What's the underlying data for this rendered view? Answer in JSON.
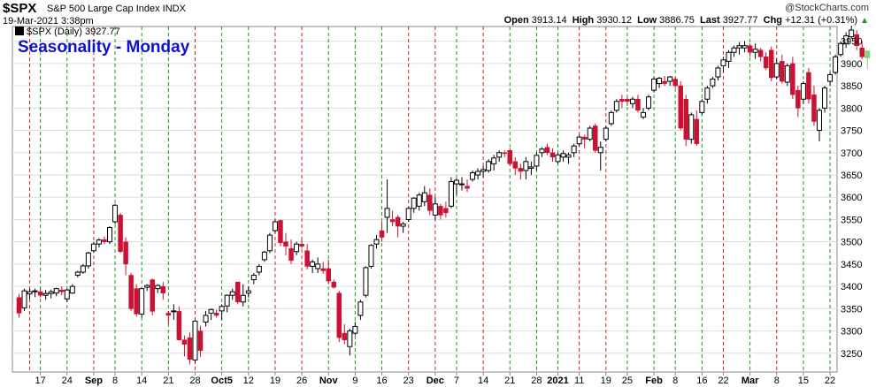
{
  "header": {
    "symbol": "$SPX",
    "description": "S&P 500 Large Cap Index  INDX",
    "datetime": "19-Mar-2021 3:38pm",
    "brand": "@StockCharts.com",
    "open_label": "Open",
    "open": "3913.14",
    "high_label": "High",
    "high": "3930.12",
    "low_label": "Low",
    "low": "3886.75",
    "last_label": "Last",
    "last": "3927.77",
    "chg_label": "Chg",
    "chg": "+12.31 (+0.31%)"
  },
  "chart_data": {
    "type": "candlestick",
    "title": "Seasonality - Monday",
    "legend": "$SPX (Daily) 3927.77",
    "yticks": [
      3250,
      3300,
      3350,
      3400,
      3450,
      3500,
      3550,
      3600,
      3650,
      3700,
      3750,
      3800,
      3850,
      3900,
      3950
    ],
    "ylim": [
      3208,
      3983
    ],
    "xlim": [
      0,
      154
    ],
    "xticks": [
      {
        "label": "17",
        "bold": false,
        "i": 4
      },
      {
        "label": "24",
        "bold": false,
        "i": 9
      },
      {
        "label": "Sep",
        "bold": true,
        "i": 14
      },
      {
        "label": "8",
        "bold": false,
        "i": 18
      },
      {
        "label": "14",
        "bold": false,
        "i": 23
      },
      {
        "label": "21",
        "bold": false,
        "i": 28
      },
      {
        "label": "28",
        "bold": false,
        "i": 33
      },
      {
        "label": "Oct5",
        "bold": true,
        "i": 38
      },
      {
        "label": "12",
        "bold": false,
        "i": 43
      },
      {
        "label": "19",
        "bold": false,
        "i": 48
      },
      {
        "label": "26",
        "bold": false,
        "i": 53
      },
      {
        "label": "Nov",
        "bold": true,
        "i": 58
      },
      {
        "label": "9",
        "bold": false,
        "i": 63
      },
      {
        "label": "16",
        "bold": false,
        "i": 68
      },
      {
        "label": "23",
        "bold": false,
        "i": 73
      },
      {
        "label": "Dec",
        "bold": true,
        "i": 78
      },
      {
        "label": "7",
        "bold": false,
        "i": 82
      },
      {
        "label": "14",
        "bold": false,
        "i": 87
      },
      {
        "label": "21",
        "bold": false,
        "i": 92
      },
      {
        "label": "28",
        "bold": false,
        "i": 97
      },
      {
        "label": "2021",
        "bold": true,
        "i": 101
      },
      {
        "label": "11",
        "bold": false,
        "i": 105
      },
      {
        "label": "19",
        "bold": false,
        "i": 110
      },
      {
        "label": "25",
        "bold": false,
        "i": 114
      },
      {
        "label": "Feb",
        "bold": true,
        "i": 119
      },
      {
        "label": "8",
        "bold": false,
        "i": 123
      },
      {
        "label": "16",
        "bold": false,
        "i": 128
      },
      {
        "label": "22",
        "bold": false,
        "i": 132
      },
      {
        "label": "Mar",
        "bold": true,
        "i": 137
      },
      {
        "label": "8",
        "bold": false,
        "i": 142
      },
      {
        "label": "15",
        "bold": false,
        "i": 147
      },
      {
        "label": "22",
        "bold": false,
        "i": 152
      }
    ],
    "vlines": [
      {
        "i": 2,
        "c": "r"
      },
      {
        "i": 4,
        "c": "g"
      },
      {
        "i": 9,
        "c": "g"
      },
      {
        "i": 14,
        "c": "r"
      },
      {
        "i": 18,
        "c": "g"
      },
      {
        "i": 23,
        "c": "g"
      },
      {
        "i": 28,
        "c": "g"
      },
      {
        "i": 33,
        "c": "r"
      },
      {
        "i": 38,
        "c": "g"
      },
      {
        "i": 43,
        "c": "g"
      },
      {
        "i": 48,
        "c": "r"
      },
      {
        "i": 53,
        "c": "r"
      },
      {
        "i": 58,
        "c": "g"
      },
      {
        "i": 63,
        "c": "g"
      },
      {
        "i": 68,
        "c": "g"
      },
      {
        "i": 73,
        "c": "r"
      },
      {
        "i": 78,
        "c": "r"
      },
      {
        "i": 82,
        "c": "g"
      },
      {
        "i": 87,
        "c": "r"
      },
      {
        "i": 92,
        "c": "g"
      },
      {
        "i": 97,
        "c": "g"
      },
      {
        "i": 101,
        "c": "g"
      },
      {
        "i": 105,
        "c": "r"
      },
      {
        "i": 110,
        "c": "r"
      },
      {
        "i": 114,
        "c": "g"
      },
      {
        "i": 119,
        "c": "g"
      },
      {
        "i": 123,
        "c": "g"
      },
      {
        "i": 128,
        "c": "g"
      },
      {
        "i": 132,
        "c": "r"
      },
      {
        "i": 137,
        "c": "g"
      },
      {
        "i": 142,
        "c": "r"
      },
      {
        "i": 147,
        "c": "g"
      },
      {
        "i": 152,
        "c": "g"
      }
    ],
    "candles": [
      [
        3375,
        3383,
        3330,
        3340
      ],
      [
        3352,
        3395,
        3345,
        3390
      ],
      [
        3383,
        3395,
        3372,
        3388
      ],
      [
        3388,
        3395,
        3376,
        3390
      ],
      [
        3388,
        3396,
        3375,
        3380
      ],
      [
        3380,
        3392,
        3370,
        3384
      ],
      [
        3384,
        3393,
        3373,
        3388
      ],
      [
        3385,
        3397,
        3378,
        3395
      ],
      [
        3392,
        3400,
        3380,
        3388
      ],
      [
        3372,
        3395,
        3365,
        3392
      ],
      [
        3385,
        3405,
        3383,
        3400
      ],
      [
        3425,
        3435,
        3420,
        3432
      ],
      [
        3432,
        3450,
        3428,
        3446
      ],
      [
        3446,
        3478,
        3440,
        3475
      ],
      [
        3480,
        3500,
        3475,
        3495
      ],
      [
        3495,
        3508,
        3487,
        3504
      ],
      [
        3505,
        3512,
        3495,
        3500
      ],
      [
        3500,
        3535,
        3495,
        3532
      ],
      [
        3545,
        3585,
        3540,
        3582
      ],
      [
        3560,
        3565,
        3475,
        3478
      ],
      [
        3500,
        3510,
        3425,
        3450
      ],
      [
        3425,
        3430,
        3345,
        3350
      ],
      [
        3395,
        3405,
        3332,
        3338
      ],
      [
        3338,
        3396,
        3330,
        3395
      ],
      [
        3398,
        3405,
        3390,
        3402
      ],
      [
        3415,
        3418,
        3335,
        3344
      ],
      [
        3395,
        3405,
        3385,
        3402
      ],
      [
        3400,
        3410,
        3370,
        3385
      ],
      [
        3340,
        3345,
        3315,
        3335
      ],
      [
        3345,
        3360,
        3325,
        3345
      ],
      [
        3344,
        3355,
        3278,
        3280
      ],
      [
        3280,
        3290,
        3243,
        3270
      ],
      [
        3285,
        3297,
        3225,
        3236
      ],
      [
        3235,
        3325,
        3229,
        3322
      ],
      [
        3300,
        3312,
        3242,
        3256
      ],
      [
        3320,
        3345,
        3310,
        3335
      ],
      [
        3340,
        3350,
        3325,
        3348
      ],
      [
        3340,
        3348,
        3330,
        3335
      ],
      [
        3345,
        3360,
        3325,
        3355
      ],
      [
        3356,
        3382,
        3342,
        3380
      ],
      [
        3380,
        3395,
        3370,
        3388
      ],
      [
        3410,
        3410,
        3360,
        3365
      ],
      [
        3365,
        3405,
        3355,
        3380
      ],
      [
        3385,
        3400,
        3375,
        3390
      ],
      [
        3415,
        3430,
        3405,
        3425
      ],
      [
        3432,
        3450,
        3425,
        3445
      ],
      [
        3460,
        3480,
        3455,
        3477
      ],
      [
        3480,
        3520,
        3475,
        3515
      ],
      [
        3525,
        3550,
        3520,
        3545
      ],
      [
        3548,
        3550,
        3490,
        3498
      ],
      [
        3500,
        3520,
        3470,
        3490
      ],
      [
        3485,
        3505,
        3450,
        3458
      ],
      [
        3478,
        3500,
        3470,
        3495
      ],
      [
        3495,
        3505,
        3485,
        3490
      ],
      [
        3480,
        3495,
        3438,
        3445
      ],
      [
        3445,
        3460,
        3430,
        3455
      ],
      [
        3440,
        3465,
        3430,
        3450
      ],
      [
        3440,
        3455,
        3428,
        3435
      ],
      [
        3440,
        3460,
        3405,
        3412
      ],
      [
        3410,
        3415,
        3395,
        3398
      ],
      [
        3385,
        3390,
        3275,
        3285
      ],
      [
        3295,
        3315,
        3270,
        3280
      ],
      [
        3265,
        3305,
        3245,
        3300
      ],
      [
        3295,
        3320,
        3290,
        3310
      ],
      [
        3335,
        3370,
        3325,
        3365
      ],
      [
        3380,
        3445,
        3375,
        3442
      ],
      [
        3445,
        3495,
        3440,
        3492
      ],
      [
        3495,
        3515,
        3485,
        3505
      ],
      [
        3525,
        3545,
        3500,
        3510
      ],
      [
        3555,
        3640,
        3520,
        3575
      ],
      [
        3550,
        3570,
        3535,
        3545
      ],
      [
        3555,
        3560,
        3510,
        3535
      ],
      [
        3535,
        3545,
        3520,
        3540
      ],
      [
        3550,
        3578,
        3545,
        3575
      ],
      [
        3575,
        3600,
        3565,
        3598
      ],
      [
        3580,
        3610,
        3570,
        3605
      ],
      [
        3590,
        3625,
        3580,
        3610
      ],
      [
        3605,
        3620,
        3560,
        3570
      ],
      [
        3560,
        3600,
        3550,
        3585
      ],
      [
        3580,
        3585,
        3550,
        3560
      ],
      [
        3575,
        3590,
        3555,
        3565
      ],
      [
        3580,
        3645,
        3575,
        3635
      ],
      [
        3630,
        3642,
        3605,
        3638
      ],
      [
        3630,
        3645,
        3615,
        3630
      ],
      [
        3625,
        3640,
        3612,
        3620
      ],
      [
        3640,
        3660,
        3635,
        3655
      ],
      [
        3650,
        3665,
        3640,
        3658
      ],
      [
        3658,
        3670,
        3645,
        3662
      ],
      [
        3660,
        3685,
        3655,
        3680
      ],
      [
        3675,
        3695,
        3660,
        3688
      ],
      [
        3690,
        3705,
        3680,
        3700
      ],
      [
        3700,
        3705,
        3690,
        3698
      ],
      [
        3705,
        3710,
        3670,
        3675
      ],
      [
        3680,
        3690,
        3650,
        3665
      ],
      [
        3665,
        3675,
        3640,
        3658
      ],
      [
        3660,
        3690,
        3640,
        3680
      ],
      [
        3665,
        3680,
        3650,
        3668
      ],
      [
        3670,
        3700,
        3660,
        3694
      ],
      [
        3700,
        3712,
        3690,
        3708
      ],
      [
        3712,
        3720,
        3695,
        3700
      ],
      [
        3700,
        3710,
        3680,
        3690
      ],
      [
        3680,
        3700,
        3675,
        3695
      ],
      [
        3690,
        3705,
        3680,
        3698
      ],
      [
        3690,
        3700,
        3675,
        3695
      ],
      [
        3700,
        3720,
        3690,
        3715
      ],
      [
        3720,
        3740,
        3715,
        3735
      ],
      [
        3735,
        3740,
        3710,
        3730
      ],
      [
        3730,
        3760,
        3725,
        3755
      ],
      [
        3760,
        3765,
        3700,
        3705
      ],
      [
        3700,
        3725,
        3660,
        3712
      ],
      [
        3730,
        3760,
        3725,
        3755
      ],
      [
        3765,
        3795,
        3760,
        3790
      ],
      [
        3795,
        3820,
        3790,
        3815
      ],
      [
        3820,
        3830,
        3800,
        3815
      ],
      [
        3820,
        3825,
        3805,
        3815
      ],
      [
        3810,
        3825,
        3800,
        3820
      ],
      [
        3820,
        3830,
        3790,
        3795
      ],
      [
        3780,
        3800,
        3775,
        3790
      ],
      [
        3800,
        3830,
        3795,
        3825
      ],
      [
        3840,
        3870,
        3835,
        3865
      ],
      [
        3855,
        3870,
        3845,
        3867
      ],
      [
        3860,
        3872,
        3850,
        3855
      ],
      [
        3860,
        3872,
        3850,
        3870
      ],
      [
        3865,
        3870,
        3845,
        3850
      ],
      [
        3850,
        3860,
        3750,
        3755
      ],
      [
        3820,
        3830,
        3715,
        3730
      ],
      [
        3730,
        3790,
        3720,
        3785
      ],
      [
        3775,
        3795,
        3715,
        3720
      ],
      [
        3790,
        3820,
        3785,
        3815
      ],
      [
        3820,
        3850,
        3810,
        3845
      ],
      [
        3850,
        3870,
        3845,
        3865
      ],
      [
        3870,
        3895,
        3862,
        3890
      ],
      [
        3895,
        3915,
        3880,
        3908
      ],
      [
        3905,
        3930,
        3890,
        3925
      ],
      [
        3925,
        3940,
        3915,
        3935
      ],
      [
        3935,
        3948,
        3920,
        3940
      ],
      [
        3935,
        3950,
        3925,
        3940
      ],
      [
        3940,
        3945,
        3915,
        3925
      ],
      [
        3925,
        3945,
        3910,
        3932
      ],
      [
        3930,
        3935,
        3905,
        3915
      ],
      [
        3915,
        3925,
        3885,
        3890
      ],
      [
        3930,
        3938,
        3860,
        3868
      ],
      [
        3870,
        3910,
        3865,
        3900
      ],
      [
        3905,
        3920,
        3855,
        3860
      ],
      [
        3858,
        3900,
        3850,
        3895
      ],
      [
        3900,
        3915,
        3820,
        3830
      ],
      [
        3840,
        3850,
        3780,
        3800
      ],
      [
        3820,
        3860,
        3810,
        3855
      ],
      [
        3880,
        3890,
        3810,
        3820
      ],
      [
        3830,
        3850,
        3760,
        3770
      ],
      [
        3750,
        3800,
        3725,
        3795
      ],
      [
        3800,
        3850,
        3790,
        3845
      ],
      [
        3860,
        3880,
        3850,
        3875
      ],
      [
        3880,
        3920,
        3875,
        3915
      ],
      [
        3920,
        3950,
        3915,
        3945
      ],
      [
        3945,
        3970,
        3935,
        3962
      ],
      [
        3960,
        3985,
        3955,
        3975
      ],
      [
        3965,
        3975,
        3930,
        3940
      ],
      [
        3935,
        3950,
        3910,
        3915
      ],
      [
        3913,
        3930,
        3887,
        3928
      ]
    ],
    "colors": {
      "up": "#000000",
      "down": "#cc1133",
      "last": "#7fd47f",
      "title": "#1010d0",
      "green_line": "#1a9a1a",
      "red_line": "#cc2222",
      "grid": "#dddddd"
    }
  }
}
